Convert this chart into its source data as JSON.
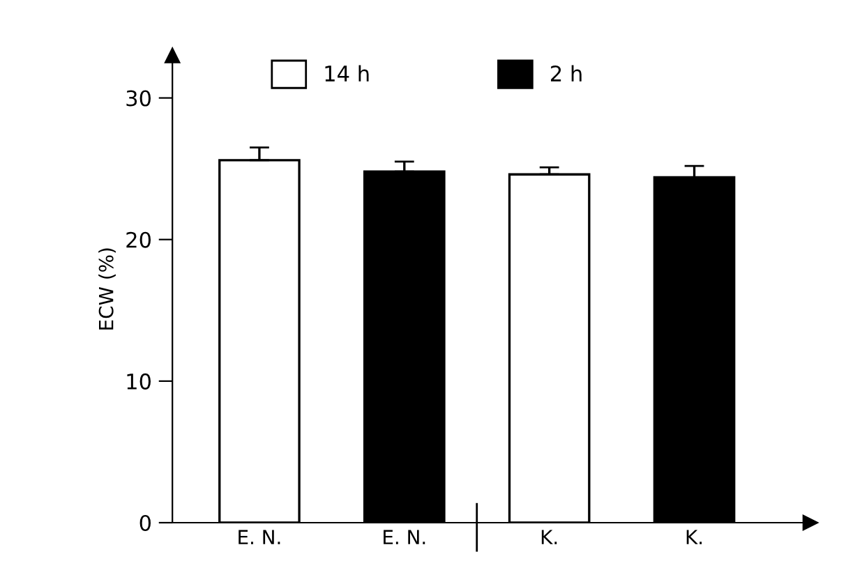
{
  "chart_data": {
    "type": "bar",
    "ylabel": "ECW (%)",
    "categories": [
      "E. N.",
      "E. N.",
      "K.",
      "K."
    ],
    "series": [
      {
        "name": "14 h",
        "color": "#ffffff",
        "values": [
          25.6,
          null,
          24.6,
          null
        ],
        "errors": [
          0.9,
          null,
          0.5,
          null
        ]
      },
      {
        "name": "2 h",
        "color": "#000000",
        "values": [
          null,
          24.8,
          null,
          24.4
        ],
        "errors": [
          null,
          0.7,
          null,
          0.8
        ]
      }
    ],
    "ylim": [
      0,
      33
    ],
    "yticks": [
      0,
      10,
      20,
      30
    ],
    "grid": false,
    "legend": "top"
  }
}
